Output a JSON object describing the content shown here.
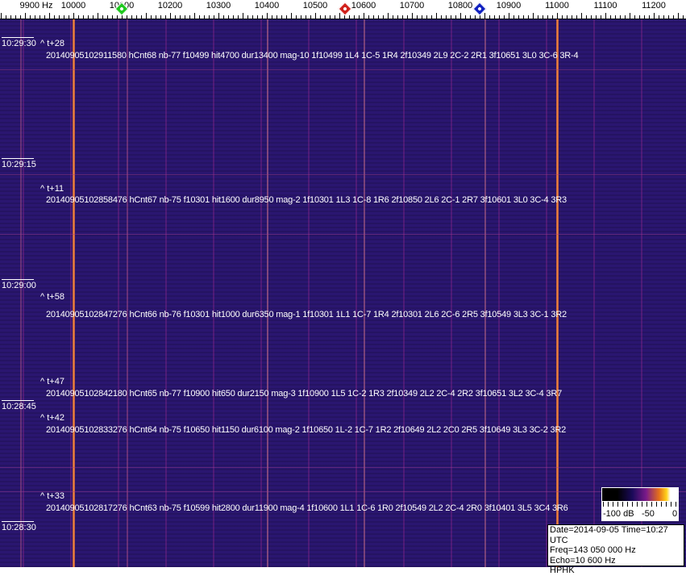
{
  "chart_data": {
    "type": "heatmap",
    "xlabel_unit": "Hz",
    "x_ticks": [
      "9900 Hz",
      "10000",
      "10100",
      "10200",
      "10300",
      "10400",
      "10500",
      "10600",
      "10700",
      "10800",
      "10900",
      "11000",
      "11100",
      "11200"
    ],
    "y_ticks": [
      "10:29:30",
      "10:29:15",
      "10:29:00",
      "10:28:45",
      "10:28:30"
    ],
    "markers": [
      {
        "color": "#1ec81e",
        "freq": 10100
      },
      {
        "color": "#d0201a",
        "freq": 10562
      },
      {
        "color": "#1020c0",
        "freq": 10840
      }
    ],
    "strong_carriers_hz": [
      10000,
      11000
    ],
    "colorbar": {
      "labels": [
        "-100 dB",
        "-50",
        "0"
      ],
      "range_db": [
        -100,
        0
      ]
    }
  },
  "detections": [
    {
      "tag": "^ t+28",
      "line": "20140905102911580 hCnt68 nb-77 f10499 hit4700 dur13400 mag-10 1f10499 1L4 1C-5 1R4 2f10349 2L9 2C-2 2R1 3f10651 3L0 3C-6 3R-4"
    },
    {
      "tag": "^ t+11",
      "line": "20140905102858476 hCnt67 nb-75 f10301 hit1600 dur8950 mag-2 1f10301 1L3 1C-8 1R6 2f10850 2L6 2C-1 2R7 3f10601 3L0 3C-4 3R3"
    },
    {
      "tag": "^ t+58",
      "line": "20140905102847276 hCnt66 nb-76 f10301 hit1000 dur6350 mag-1 1f10301 1L1 1C-7 1R4 2f10301 2L6 2C-6 2R5 3f10549 3L3 3C-1 3R2"
    },
    {
      "tag": "^ t+47",
      "line": "20140905102842180 hCnt65 nb-77 f10900 hit650 dur2150 mag-3 1f10900 1L5 1C-2 1R3 2f10349 2L2 2C-4 2R2 3f10651 3L2 3C-4 3R7"
    },
    {
      "tag": "^ t+42",
      "line": "20140905102833276 hCnt64 nb-75 f10650 hit1150 dur6100 mag-2 1f10650 1L-2 1C-7 1R2 2f10649 2L2 2C0 2R5 3f10649 3L3 3C-2 3R2"
    },
    {
      "tag": "^ t+33",
      "line": "20140905102817276 hCnt63 nb-75 f10599 hit2800 dur11900 mag-4 1f10600 1L1 1C-6 1R0 2f10549 2L2 2C-4 2R0 3f10401 3L5 3C4 3R6"
    }
  ],
  "info": {
    "line1": "Date=2014-09-05 Time=10:27 UTC",
    "line2": "Freq=143 050 000 Hz",
    "line3": "Echo=10 600 Hz",
    "line4": "HPHK"
  }
}
